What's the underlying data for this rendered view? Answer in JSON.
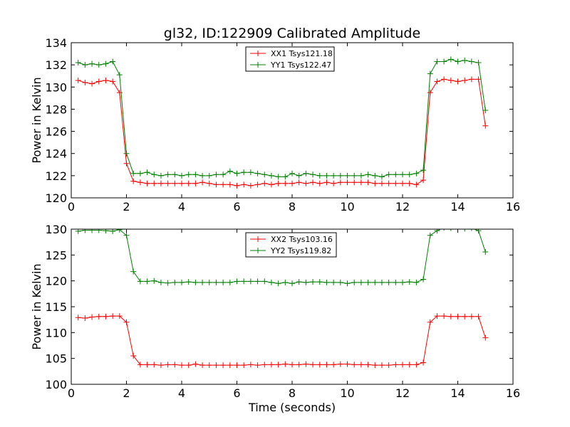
{
  "chart_data": [
    {
      "type": "line",
      "title": "gl32, ID:122909 Calibrated Amplitude",
      "xlabel": "",
      "ylabel": "Power in Kelvin",
      "xlim": [
        0,
        16
      ],
      "ylim": [
        120,
        134
      ],
      "xticks": [
        "0",
        "2",
        "4",
        "6",
        "8",
        "10",
        "12",
        "14",
        "16"
      ],
      "yticks": [
        "120",
        "122",
        "124",
        "126",
        "128",
        "130",
        "132",
        "134"
      ],
      "legend_position": "top-center",
      "x": [
        0.25,
        0.5,
        0.75,
        1.0,
        1.25,
        1.5,
        1.75,
        2.0,
        2.25,
        2.5,
        2.75,
        3.0,
        3.25,
        3.5,
        3.75,
        4.0,
        4.25,
        4.5,
        4.75,
        5.0,
        5.25,
        5.5,
        5.75,
        6.0,
        6.25,
        6.5,
        6.75,
        7.0,
        7.25,
        7.5,
        7.75,
        8.0,
        8.25,
        8.5,
        8.75,
        9.0,
        9.25,
        9.5,
        9.75,
        10.0,
        10.25,
        10.5,
        10.75,
        11.0,
        11.25,
        11.5,
        11.75,
        12.0,
        12.25,
        12.5,
        12.75,
        13.0,
        13.25,
        13.5,
        13.75,
        14.0,
        14.25,
        14.5,
        14.75,
        15.0
      ],
      "series": [
        {
          "name": "XX1 Tsys121.18",
          "color": "#ff0000",
          "values": [
            130.6,
            130.4,
            130.3,
            130.5,
            130.6,
            130.5,
            129.5,
            123.1,
            121.5,
            121.4,
            121.3,
            121.3,
            121.3,
            121.3,
            121.3,
            121.3,
            121.3,
            121.3,
            121.4,
            121.3,
            121.2,
            121.2,
            121.2,
            121.1,
            121.2,
            121.1,
            121.2,
            121.3,
            121.2,
            121.3,
            121.3,
            121.3,
            121.4,
            121.3,
            121.4,
            121.3,
            121.4,
            121.3,
            121.4,
            121.4,
            121.4,
            121.4,
            121.4,
            121.3,
            121.3,
            121.3,
            121.3,
            121.3,
            121.3,
            121.2,
            121.6,
            129.5,
            130.5,
            130.7,
            130.6,
            130.5,
            130.6,
            130.7,
            130.7,
            126.5
          ]
        },
        {
          "name": "YY1 Tsys122.47",
          "color": "#008000",
          "values": [
            132.2,
            132.0,
            132.1,
            132.0,
            132.1,
            132.3,
            131.1,
            124.0,
            122.2,
            122.2,
            122.3,
            122.1,
            122.0,
            122.1,
            122.1,
            122.0,
            122.1,
            122.1,
            122.0,
            122.0,
            122.1,
            122.1,
            122.4,
            122.2,
            122.3,
            122.3,
            122.2,
            122.1,
            122.0,
            121.9,
            121.9,
            122.2,
            122.0,
            122.2,
            122.1,
            122.0,
            122.0,
            122.0,
            122.0,
            122.0,
            122.0,
            122.0,
            122.1,
            122.0,
            121.9,
            122.1,
            122.1,
            122.1,
            122.1,
            122.2,
            122.5,
            131.2,
            132.3,
            132.3,
            132.5,
            132.3,
            132.4,
            132.3,
            132.2,
            127.9
          ]
        }
      ]
    },
    {
      "type": "line",
      "title": "",
      "xlabel": "Time (seconds)",
      "ylabel": "Power in Kelvin",
      "xlim": [
        0,
        16
      ],
      "ylim": [
        100,
        130
      ],
      "xticks": [
        "0",
        "2",
        "4",
        "6",
        "8",
        "10",
        "12",
        "14",
        "16"
      ],
      "yticks": [
        "100",
        "105",
        "110",
        "115",
        "120",
        "125",
        "130"
      ],
      "legend_position": "top-center",
      "x": [
        0.25,
        0.5,
        0.75,
        1.0,
        1.25,
        1.5,
        1.75,
        2.0,
        2.25,
        2.5,
        2.75,
        3.0,
        3.25,
        3.5,
        3.75,
        4.0,
        4.25,
        4.5,
        4.75,
        5.0,
        5.25,
        5.5,
        5.75,
        6.0,
        6.25,
        6.5,
        6.75,
        7.0,
        7.25,
        7.5,
        7.75,
        8.0,
        8.25,
        8.5,
        8.75,
        9.0,
        9.25,
        9.5,
        9.75,
        10.0,
        10.25,
        10.5,
        10.75,
        11.0,
        11.25,
        11.5,
        11.75,
        12.0,
        12.25,
        12.5,
        12.75,
        13.0,
        13.25,
        13.5,
        13.75,
        14.0,
        14.25,
        14.5,
        14.75,
        15.0
      ],
      "series": [
        {
          "name": "XX2 Tsys103.16",
          "color": "#ff0000",
          "values": [
            112.9,
            112.8,
            113.0,
            113.1,
            113.1,
            113.2,
            113.2,
            112.0,
            105.5,
            103.8,
            103.8,
            103.8,
            103.7,
            103.8,
            103.8,
            103.7,
            103.7,
            103.9,
            103.7,
            103.7,
            103.7,
            103.7,
            103.7,
            103.7,
            103.7,
            103.8,
            103.7,
            103.8,
            103.8,
            103.8,
            103.9,
            103.8,
            103.8,
            103.9,
            103.8,
            103.8,
            103.8,
            103.8,
            103.9,
            103.9,
            103.8,
            103.8,
            103.8,
            103.7,
            103.7,
            103.7,
            103.8,
            103.8,
            103.8,
            103.8,
            104.2,
            112.0,
            113.2,
            113.2,
            113.1,
            113.1,
            113.1,
            113.1,
            113.1,
            109.0
          ]
        },
        {
          "name": "YY2 Tsys119.82",
          "color": "#008000",
          "values": [
            129.6,
            129.8,
            129.8,
            129.8,
            129.7,
            129.6,
            129.9,
            128.8,
            121.8,
            119.9,
            119.9,
            120.0,
            119.7,
            119.6,
            119.7,
            119.7,
            119.8,
            119.7,
            119.7,
            119.7,
            119.7,
            119.7,
            119.7,
            119.9,
            119.9,
            119.9,
            119.9,
            119.9,
            119.7,
            119.5,
            119.7,
            119.5,
            119.8,
            119.7,
            119.8,
            119.8,
            119.7,
            119.7,
            119.7,
            119.5,
            119.7,
            119.7,
            119.7,
            119.7,
            119.7,
            119.7,
            119.7,
            119.7,
            119.8,
            119.7,
            120.3,
            128.8,
            129.7,
            130.3,
            130.2,
            130.2,
            130.1,
            130.2,
            129.7,
            125.6
          ]
        }
      ]
    }
  ]
}
